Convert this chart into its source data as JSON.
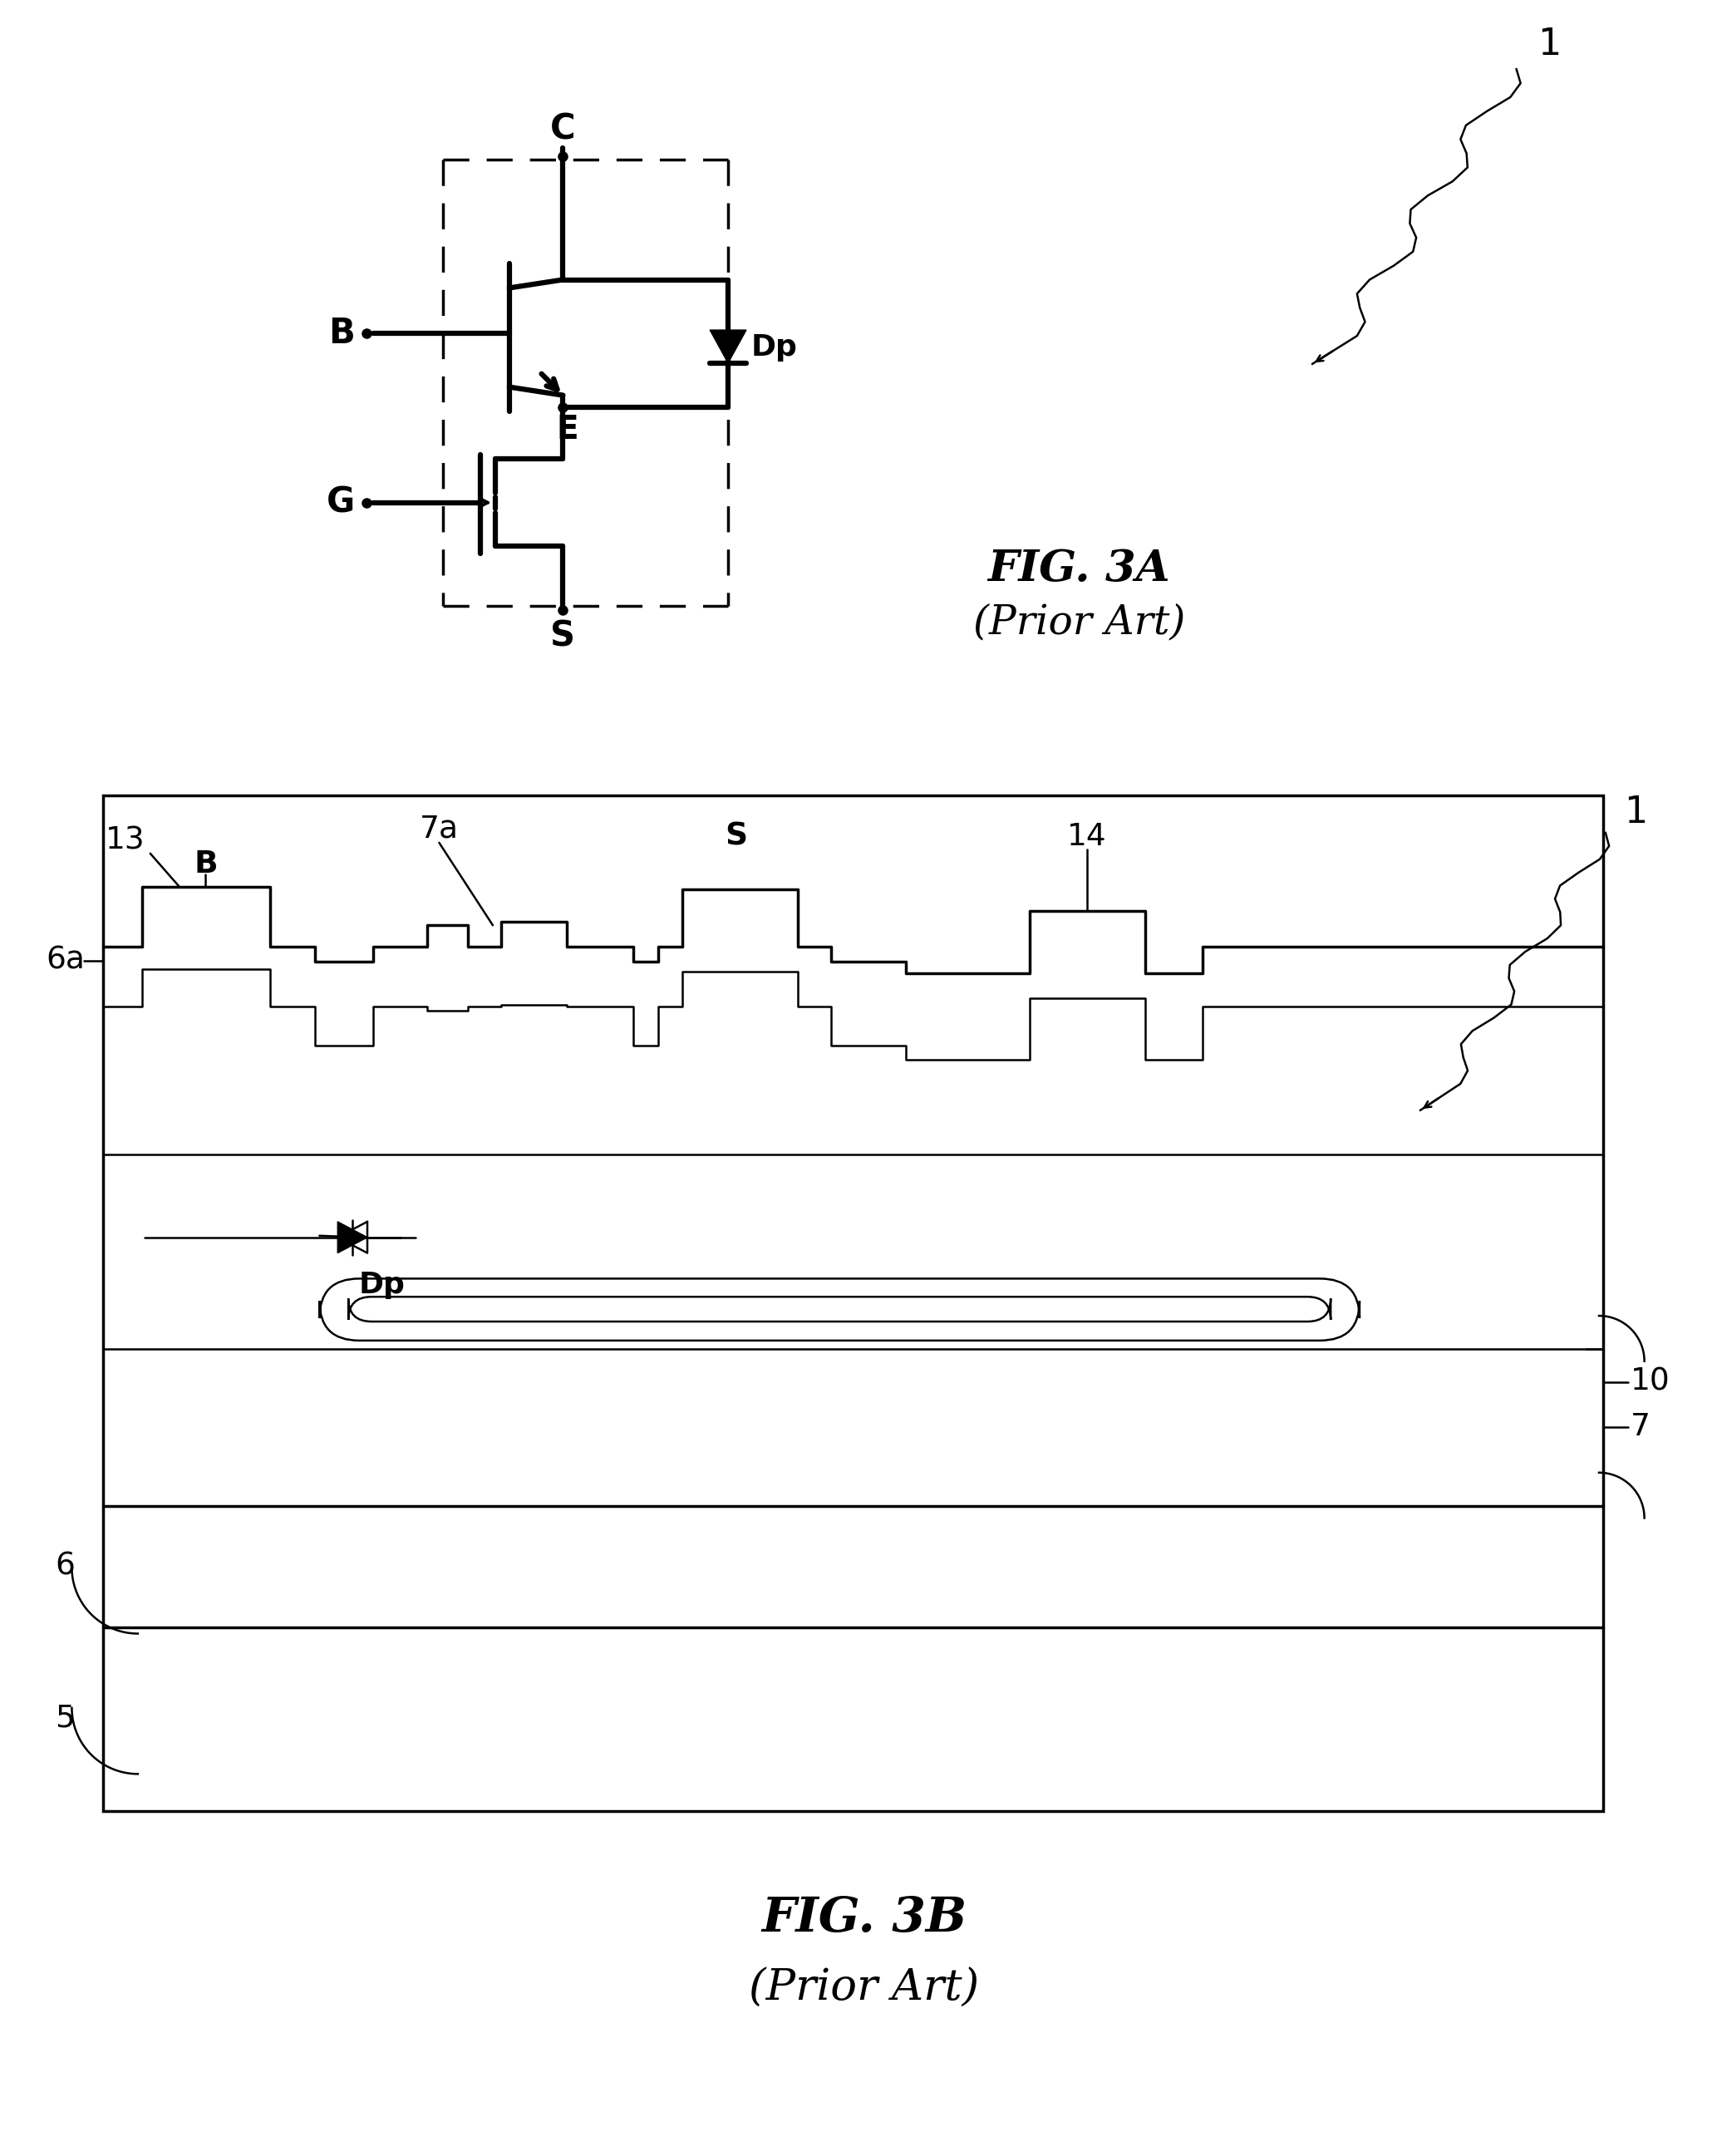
{
  "bg_color": "#ffffff",
  "line_color": "#000000",
  "fig_width": 20.66,
  "fig_height": 25.94,
  "fig3a_label": "FIG. 3A",
  "fig3a_sublabel": "(Prior Art)",
  "fig3b_label": "FIG. 3B",
  "fig3b_sublabel": "(Prior Art)"
}
